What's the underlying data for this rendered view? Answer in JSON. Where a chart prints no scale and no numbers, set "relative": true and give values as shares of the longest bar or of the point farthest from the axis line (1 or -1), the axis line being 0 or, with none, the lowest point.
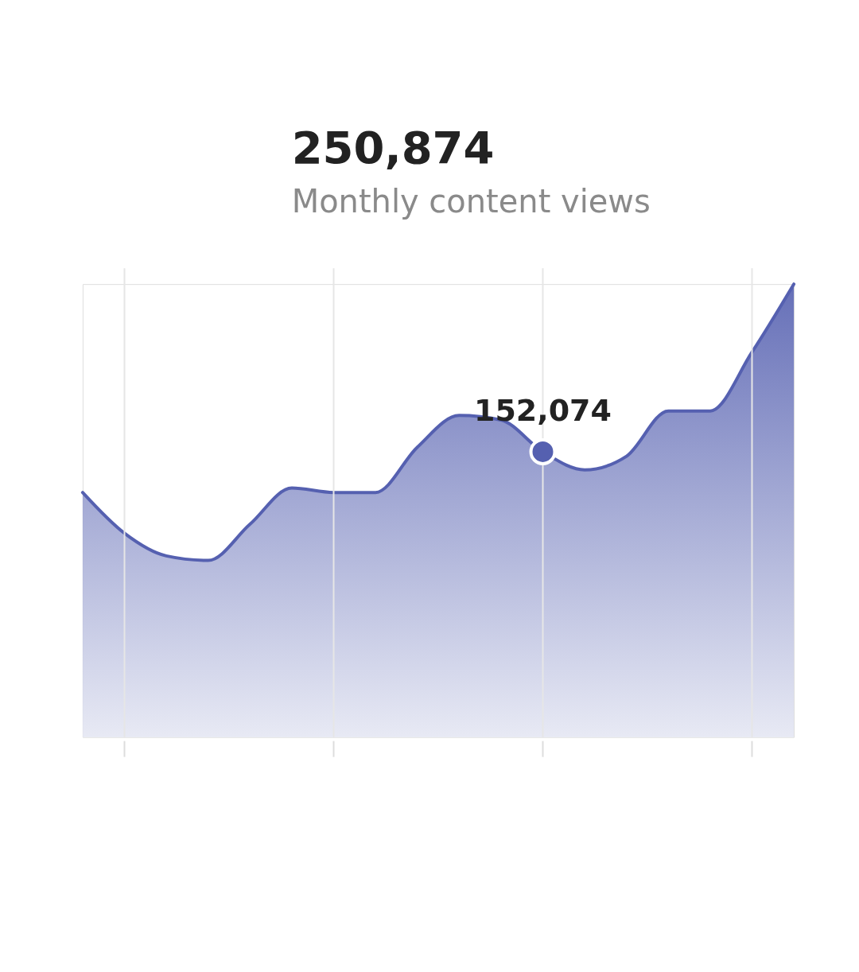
{
  "chart_data": {
    "type": "area",
    "title": "250,874",
    "subtitle": "Monthly content views",
    "relative": true,
    "grid": "x",
    "categories": [
      null,
      null,
      null,
      null,
      null,
      null,
      null,
      null,
      null,
      null,
      null,
      null,
      null,
      null,
      null,
      null,
      null,
      null
    ],
    "series": [
      {
        "color": "#5560b0",
        "values": [
          0.54,
          0.45,
          0.4,
          0.39,
          0.47,
          0.55,
          0.54,
          0.54,
          0.64,
          0.71,
          0.7,
          0.63,
          0.59,
          0.62,
          0.72,
          0.72,
          0.85,
          1.0
        ]
      }
    ],
    "annotations": [
      {
        "text": "152,074",
        "y": 0.63
      }
    ]
  }
}
